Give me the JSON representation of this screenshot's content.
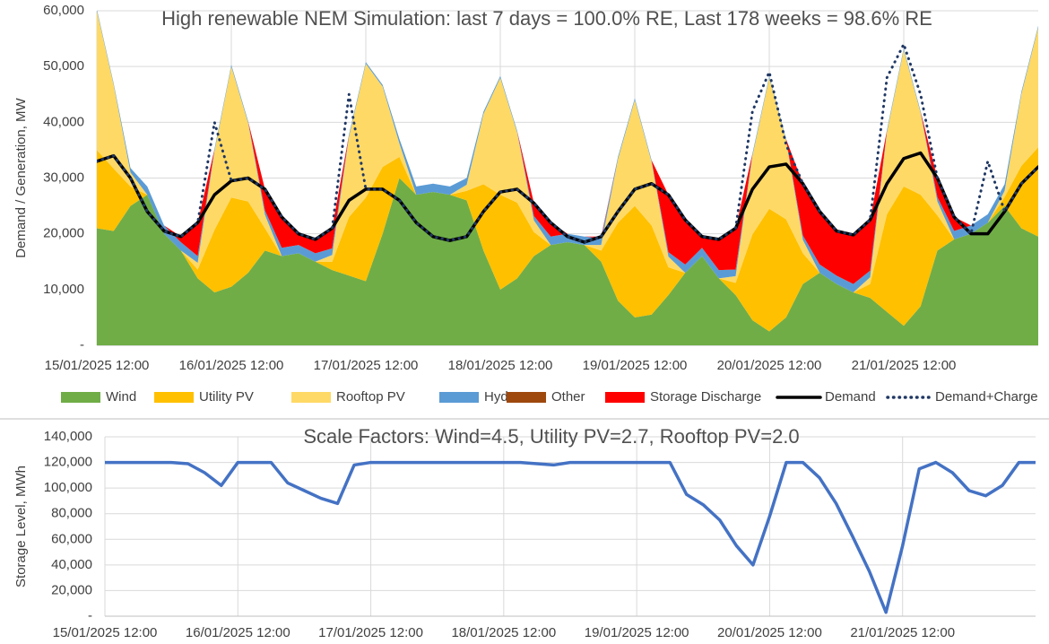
{
  "chart_data": [
    {
      "type": "stacked-area",
      "title": "High renewable NEM Simulation: last 7 days = 100.0% RE, Last 178 weeks = 98.6% RE",
      "y_label": "Demand / Generation, MW",
      "categories": [
        "15/01/2025 12:00",
        null,
        null,
        null,
        null,
        null,
        null,
        null,
        "16/01/2025 12:00",
        null,
        null,
        null,
        null,
        null,
        null,
        null,
        "17/01/2025 12:00",
        null,
        null,
        null,
        null,
        null,
        null,
        null,
        "18/01/2025 12:00",
        null,
        null,
        null,
        null,
        null,
        null,
        null,
        "19/01/2025 12:00",
        null,
        null,
        null,
        null,
        null,
        null,
        null,
        "20/01/2025 12:00",
        null,
        null,
        null,
        null,
        null,
        null,
        null,
        "21/01/2025 12:00",
        null,
        null,
        null,
        null,
        null,
        null,
        null,
        null
      ],
      "ylim": [
        0,
        60000
      ],
      "yticks": [
        {
          "value": 0,
          "label": "-"
        },
        {
          "value": 10000,
          "label": "10,000"
        },
        {
          "value": 20000,
          "label": "20,000"
        },
        {
          "value": 30000,
          "label": "30,000"
        },
        {
          "value": 40000,
          "label": "40,000"
        },
        {
          "value": 50000,
          "label": "50,000"
        },
        {
          "value": 60000,
          "label": "60,000"
        }
      ],
      "grid": true,
      "legend": "bottom",
      "series": [
        {
          "name": "Wind",
          "type": "area",
          "color": "#70ad47",
          "values": [
            21000,
            20500,
            25000,
            27000,
            20000,
            17000,
            12000,
            9500,
            10500,
            13000,
            17000,
            16000,
            16500,
            15000,
            13500,
            12500,
            11500,
            20000,
            30000,
            27000,
            27500,
            27000,
            26000,
            17000,
            10000,
            12000,
            16000,
            18000,
            18500,
            18000,
            15000,
            8000,
            5000,
            5500,
            9000,
            13000,
            16000,
            12000,
            9000,
            4500,
            2500,
            5000,
            11000,
            13000,
            11000,
            9500,
            8500,
            6000,
            3500,
            7000,
            17000,
            19000,
            20000,
            22000,
            25000,
            21000,
            19500
          ]
        },
        {
          "name": "Utility PV",
          "type": "area",
          "color": "#ffc000",
          "values": [
            14000,
            11200,
            3500,
            0,
            0,
            0,
            1600,
            11200,
            16000,
            12800,
            4000,
            0,
            0,
            0,
            1500,
            10500,
            15000,
            12000,
            3800,
            0,
            0,
            0,
            1700,
            11900,
            17000,
            13600,
            4300,
            0,
            0,
            0,
            2000,
            14000,
            20000,
            16000,
            5000,
            0,
            0,
            0,
            2200,
            15400,
            22000,
            17600,
            5500,
            0,
            0,
            0,
            2500,
            17500,
            25000,
            20000,
            6300,
            0,
            0,
            0,
            1600,
            11200,
            16000
          ]
        },
        {
          "name": "Rooftop PV",
          "type": "area",
          "color": "#ffd966",
          "values": [
            25000,
            15000,
            2500,
            0,
            0,
            0,
            1200,
            14100,
            23500,
            14100,
            2400,
            0,
            0,
            0,
            1200,
            14400,
            24000,
            14400,
            2400,
            0,
            0,
            0,
            1100,
            12600,
            21000,
            12600,
            2100,
            0,
            0,
            0,
            1000,
            11400,
            19000,
            11400,
            1900,
            0,
            0,
            0,
            1200,
            14100,
            23500,
            14100,
            2400,
            0,
            0,
            0,
            1200,
            14700,
            24500,
            14700,
            2500,
            0,
            0,
            0,
            1100,
            12900,
            21500
          ]
        },
        {
          "name": "Hydro",
          "type": "area",
          "color": "#5b9bd5",
          "values": [
            300,
            300,
            800,
            1500,
            1500,
            1500,
            1200,
            400,
            300,
            300,
            800,
            1500,
            1500,
            1500,
            1200,
            400,
            300,
            300,
            800,
            1500,
            1500,
            1500,
            1200,
            400,
            300,
            300,
            800,
            1500,
            1500,
            1500,
            1200,
            400,
            300,
            300,
            800,
            1500,
            1500,
            1500,
            1200,
            400,
            300,
            300,
            800,
            1500,
            1500,
            1500,
            1200,
            400,
            300,
            300,
            800,
            1500,
            1500,
            1500,
            1200,
            400,
            300
          ]
        },
        {
          "name": "Other",
          "type": "area",
          "color": "#9e480e",
          "values": [
            0,
            0,
            0,
            0,
            0,
            0,
            0,
            0,
            0,
            0,
            0,
            0,
            0,
            0,
            0,
            0,
            0,
            0,
            0,
            0,
            0,
            0,
            0,
            0,
            0,
            0,
            0,
            0,
            0,
            0,
            0,
            0,
            0,
            0,
            0,
            0,
            0,
            0,
            0,
            0,
            0,
            0,
            0,
            0,
            0,
            0,
            0,
            0,
            0,
            0,
            0,
            0,
            0,
            0,
            0,
            0,
            0
          ]
        },
        {
          "name": "Storage Discharge",
          "type": "area",
          "color": "#ff0000",
          "values": [
            0,
            0,
            0,
            0,
            0,
            1000,
            6000,
            0,
            0,
            0,
            3800,
            5500,
            2000,
            2500,
            3600,
            0,
            0,
            0,
            0,
            0,
            0,
            0,
            0,
            0,
            0,
            0,
            2300,
            2500,
            0,
            0,
            300,
            0,
            0,
            0,
            10300,
            8000,
            2000,
            5500,
            7400,
            0,
            0,
            0,
            9300,
            9500,
            8000,
            8800,
            9100,
            0,
            0,
            0,
            3400,
            2500,
            0,
            0,
            0,
            0,
            0
          ]
        },
        {
          "name": "Demand",
          "type": "line",
          "color": "#000000",
          "values": [
            33000,
            34000,
            30000,
            24000,
            20500,
            19500,
            22000,
            27000,
            29500,
            30000,
            28000,
            23000,
            20000,
            19000,
            21000,
            26000,
            28000,
            28000,
            26000,
            22000,
            19500,
            18800,
            19500,
            24000,
            27500,
            28000,
            25500,
            22000,
            19500,
            18500,
            19500,
            24000,
            28000,
            29000,
            27000,
            22500,
            19500,
            19000,
            21000,
            28000,
            32000,
            32500,
            29000,
            24000,
            20500,
            19800,
            22500,
            29000,
            33500,
            34500,
            30000,
            23000,
            20000,
            20000,
            24000,
            29000,
            32000
          ]
        },
        {
          "name": "Demand+Charge",
          "type": "line",
          "dash": "dotted",
          "color": "#203864",
          "values": [
            33000,
            34000,
            30000,
            24000,
            20500,
            19500,
            22000,
            40000,
            29500,
            30000,
            28000,
            23000,
            20000,
            19000,
            21000,
            45000,
            28000,
            28000,
            26000,
            22000,
            19500,
            18800,
            19500,
            24000,
            27500,
            28000,
            25500,
            22000,
            19500,
            18500,
            19500,
            24000,
            28000,
            29000,
            27000,
            22500,
            19500,
            19000,
            21000,
            42000,
            49000,
            36000,
            29000,
            24000,
            20500,
            19800,
            22500,
            48000,
            54000,
            45000,
            30000,
            23000,
            20000,
            33000,
            24000,
            29000,
            32000
          ]
        }
      ]
    },
    {
      "type": "line",
      "title": "Scale Factors: Wind=4.5, Utility PV=2.7, Rooftop PV=2.0",
      "y_label": "Storage Level, MWh",
      "categories": [
        "15/01/2025 12:00",
        null,
        null,
        null,
        null,
        null,
        null,
        null,
        "16/01/2025 12:00",
        null,
        null,
        null,
        null,
        null,
        null,
        null,
        "17/01/2025 12:00",
        null,
        null,
        null,
        null,
        null,
        null,
        null,
        "18/01/2025 12:00",
        null,
        null,
        null,
        null,
        null,
        null,
        null,
        "19/01/2025 12:00",
        null,
        null,
        null,
        null,
        null,
        null,
        null,
        "20/01/2025 12:00",
        null,
        null,
        null,
        null,
        null,
        null,
        null,
        "21/01/2025 12:00",
        null,
        null,
        null,
        null,
        null,
        null,
        null,
        null
      ],
      "ylim": [
        0,
        140000
      ],
      "yticks": [
        {
          "value": 0,
          "label": "-"
        },
        {
          "value": 20000,
          "label": "20,000"
        },
        {
          "value": 40000,
          "label": "40,000"
        },
        {
          "value": 60000,
          "label": "60,000"
        },
        {
          "value": 80000,
          "label": "80,000"
        },
        {
          "value": 100000,
          "label": "100,000"
        },
        {
          "value": 120000,
          "label": "120,000"
        },
        {
          "value": 140000,
          "label": "140,000"
        }
      ],
      "grid": true,
      "color": "#4472c4",
      "values": [
        120000,
        120000,
        120000,
        120000,
        120000,
        119000,
        112000,
        102000,
        120000,
        120000,
        120000,
        104000,
        98000,
        92000,
        88000,
        118000,
        120000,
        120000,
        120000,
        120000,
        120000,
        120000,
        120000,
        120000,
        120000,
        120000,
        119000,
        118000,
        120000,
        120000,
        120000,
        120000,
        120000,
        120000,
        120000,
        95000,
        87000,
        75000,
        55000,
        40000,
        78000,
        120000,
        120000,
        108000,
        88000,
        62000,
        35000,
        3000,
        55000,
        115000,
        120000,
        112000,
        98000,
        94000,
        102000,
        120000,
        120000
      ]
    }
  ]
}
